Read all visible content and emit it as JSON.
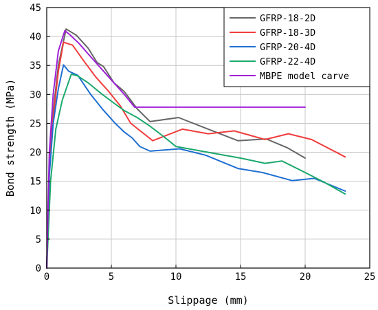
{
  "chart_data": {
    "type": "line",
    "title": "",
    "xlabel": "Slippage (mm)",
    "ylabel": "Bond strength (MPa)",
    "xlim": [
      0,
      25
    ],
    "ylim": [
      0,
      45
    ],
    "xticks": [
      0,
      5,
      10,
      15,
      20,
      25
    ],
    "yticks": [
      0,
      5,
      10,
      15,
      20,
      25,
      30,
      35,
      40,
      45
    ],
    "grid": true,
    "legend_position": "top-right",
    "series": [
      {
        "name": "GFRP-18-2D",
        "color": "#666666",
        "x": [
          0,
          0.2,
          0.5,
          0.9,
          1.5,
          2.3,
          3.2,
          3.9,
          4.4,
          5.2,
          6.0,
          7.0,
          8.0,
          10.2,
          12.5,
          14.8,
          17.0,
          18.6,
          20.0
        ],
        "y": [
          0,
          18,
          27,
          35,
          41.3,
          40.2,
          38,
          35.5,
          34.8,
          32,
          30.5,
          27.5,
          25.3,
          26.0,
          24.0,
          22.0,
          22.3,
          20.8,
          19.0
        ]
      },
      {
        "name": "GFRP-18-3D",
        "color": "#f03c3c",
        "x": [
          0,
          0.2,
          0.5,
          0.9,
          1.3,
          2.0,
          2.8,
          3.8,
          4.8,
          5.7,
          6.5,
          8.2,
          10.5,
          12.5,
          14.5,
          16.9,
          18.7,
          20.5,
          23.1
        ],
        "y": [
          0,
          17,
          26,
          34,
          39.0,
          38.5,
          36,
          33,
          30.5,
          28,
          25,
          22,
          24.0,
          23.2,
          23.7,
          22.2,
          23.2,
          22.2,
          19.2
        ]
      },
      {
        "name": "GFRP-20-4D",
        "color": "#1e6ed2",
        "x": [
          0,
          0.2,
          0.5,
          0.9,
          1.3,
          1.7,
          2.4,
          3.4,
          4.3,
          5.3,
          6.0,
          6.6,
          7.2,
          8.0,
          10.3,
          12.3,
          14.8,
          16.7,
          19.0,
          20.7,
          23.1
        ],
        "y": [
          0,
          16,
          25,
          31,
          35.1,
          34.0,
          33.3,
          30.0,
          27.5,
          25,
          23.5,
          22.5,
          21.0,
          20.2,
          20.6,
          19.5,
          17.2,
          16.5,
          15.1,
          15.5,
          13.3
        ]
      },
      {
        "name": "GFRP-22-4D",
        "color": "#1aa86c",
        "x": [
          0,
          0.3,
          0.7,
          1.2,
          1.9,
          2.4,
          3.2,
          4.3,
          5.2,
          6.0,
          7.0,
          8.0,
          9.0,
          10.0,
          12.5,
          15.0,
          16.9,
          18.2,
          20.0,
          21.5,
          23.1
        ],
        "y": [
          0,
          15,
          24,
          29,
          33.5,
          33.2,
          32,
          30,
          28.5,
          27.2,
          26,
          24.5,
          22.8,
          21,
          20.0,
          19.0,
          18.1,
          18.5,
          16.5,
          14.8,
          12.8
        ]
      },
      {
        "name": "MBPE model carve",
        "color": "#a020d8",
        "x": [
          0,
          0.2,
          0.5,
          0.9,
          1.4,
          1.8,
          2.5,
          3.2,
          4.0,
          5.0,
          6.0,
          6.8,
          20.0
        ],
        "y": [
          0,
          20,
          30,
          37.5,
          41.0,
          40.3,
          38.8,
          37,
          35,
          32.5,
          30,
          27.8,
          27.8
        ]
      }
    ]
  }
}
